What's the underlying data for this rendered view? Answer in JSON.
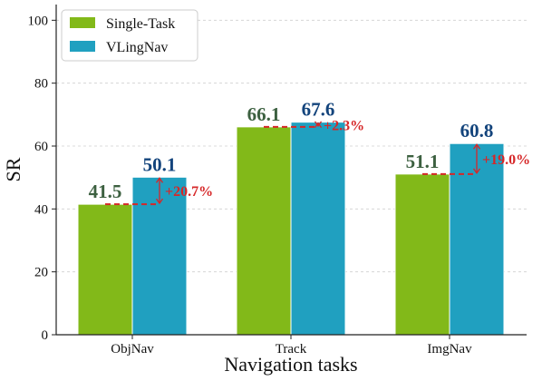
{
  "chart_data": {
    "type": "bar",
    "categories": [
      "ObjNav",
      "Track",
      "ImgNav"
    ],
    "series": [
      {
        "name": "Single-Task",
        "values": [
          41.5,
          66.1,
          51.1
        ],
        "color": "#82b919",
        "label_color": "#3c6040"
      },
      {
        "name": "VLingNav",
        "values": [
          50.1,
          67.6,
          60.8
        ],
        "color": "#20a0c0",
        "label_color": "#13447c"
      }
    ],
    "value_labels": [
      [
        "41.5",
        "66.1",
        "51.1"
      ],
      [
        "50.1",
        "67.6",
        "60.8"
      ]
    ],
    "improvements": [
      "+20.7%",
      "+2.3%",
      "+19.0%"
    ],
    "improvement_color": "#d62728",
    "xlabel": "Navigation tasks",
    "ylabel": "SR",
    "ylim": [
      0,
      105
    ],
    "yticks": [
      0,
      20,
      40,
      60,
      80,
      100
    ],
    "ytick_labels": [
      "0",
      "20",
      "40",
      "60",
      "80",
      "100"
    ],
    "grid": true,
    "legend_position": "top-left"
  }
}
